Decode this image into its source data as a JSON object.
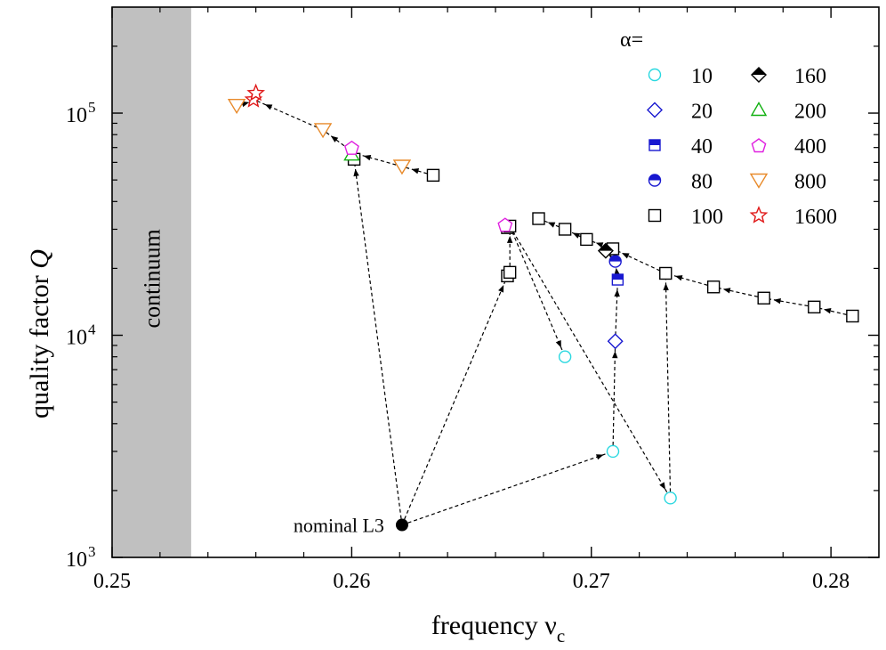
{
  "chart_data": {
    "type": "scatter",
    "xlabel": "frequency ν",
    "xlabel_sub": "c",
    "ylabel": "quality factor",
    "ylabel_italic": "Q",
    "xlim": [
      0.25,
      0.282
    ],
    "ylim": [
      1000,
      300000
    ],
    "y_scale": "log",
    "grid": false,
    "x_ticks": [
      0.25,
      0.26,
      0.27,
      0.28
    ],
    "x_tick_labels": [
      "0.25",
      "0.26",
      "0.27",
      "0.28"
    ],
    "y_ticks": [
      1000,
      10000,
      100000
    ],
    "y_tick_labels": [
      {
        "base": "10",
        "exp": "3"
      },
      {
        "base": "10",
        "exp": "4"
      },
      {
        "base": "10",
        "exp": "5"
      }
    ],
    "shaded_region": {
      "label": "continuum",
      "x_range": [
        0.25,
        0.2533
      ],
      "color": "#c0c0c0"
    },
    "legend": {
      "title": "α=",
      "placement": "top-right",
      "entries": [
        {
          "label": "10",
          "marker": "circle-open",
          "color": "#2ad8e0"
        },
        {
          "label": "20",
          "marker": "diamond-open",
          "color": "#1818d0"
        },
        {
          "label": "40",
          "marker": "square-half",
          "color": "#1818d0"
        },
        {
          "label": "80",
          "marker": "circle-half",
          "color": "#1818d0"
        },
        {
          "label": "100",
          "marker": "square-open",
          "color": "#000000"
        },
        {
          "label": "160",
          "marker": "diamond-half",
          "color": "#000000"
        },
        {
          "label": "200",
          "marker": "triangle-up-open",
          "color": "#10b010"
        },
        {
          "label": "400",
          "marker": "pentagon-open",
          "color": "#e020e0"
        },
        {
          "label": "800",
          "marker": "triangle-down-open",
          "color": "#e88a2a"
        },
        {
          "label": "1600",
          "marker": "star-open",
          "color": "#e01818"
        }
      ]
    },
    "annotation": {
      "text": "nominal L3",
      "point": [
        0.2621,
        1400
      ]
    },
    "series": [
      {
        "alpha": "10",
        "points": [
          [
            0.2689,
            8000
          ],
          [
            0.2709,
            3000
          ],
          [
            0.2733,
            1850
          ]
        ]
      },
      {
        "alpha": "20",
        "points": [
          [
            0.271,
            9400
          ]
        ]
      },
      {
        "alpha": "40",
        "points": [
          [
            0.2711,
            17800
          ]
        ]
      },
      {
        "alpha": "80",
        "points": [
          [
            0.271,
            21500
          ]
        ]
      },
      {
        "alpha": "100",
        "points": [
          [
            0.2601,
            62000
          ],
          [
            0.2634,
            52500
          ],
          [
            0.2665,
            18500
          ],
          [
            0.2666,
            19200
          ],
          [
            0.2665,
            30500
          ],
          [
            0.2666,
            31000
          ],
          [
            0.2678,
            33500
          ],
          [
            0.2689,
            30000
          ],
          [
            0.2698,
            27000
          ],
          [
            0.2709,
            24500
          ],
          [
            0.2731,
            19000
          ],
          [
            0.2751,
            16500
          ],
          [
            0.2772,
            14700
          ],
          [
            0.2793,
            13400
          ],
          [
            0.2809,
            12200
          ]
        ]
      },
      {
        "alpha": "160",
        "points": [
          [
            0.2706,
            24000
          ]
        ]
      },
      {
        "alpha": "200",
        "points": [
          [
            0.26,
            65000
          ]
        ]
      },
      {
        "alpha": "400",
        "points": [
          [
            0.26,
            70000
          ],
          [
            0.2664,
            31500
          ]
        ]
      },
      {
        "alpha": "800",
        "points": [
          [
            0.2552,
            108000
          ],
          [
            0.2588,
            84000
          ],
          [
            0.2621,
            57500
          ]
        ]
      },
      {
        "alpha": "1600",
        "points": [
          [
            0.2559,
            115000
          ],
          [
            0.256,
            123000
          ]
        ]
      }
    ],
    "nominal": {
      "point": [
        0.2621,
        1400
      ],
      "marker": "filled-circle"
    },
    "arrows": [
      {
        "from": [
          0.2621,
          1400
        ],
        "to": [
          0.2709,
          3000
        ]
      },
      {
        "from": [
          0.2621,
          1400
        ],
        "to": [
          0.2665,
          18500
        ]
      },
      {
        "from": [
          0.2621,
          1400
        ],
        "to": [
          0.2601,
          62000
        ]
      },
      {
        "from": [
          0.2601,
          62000
        ],
        "to": [
          0.2601,
          66000
        ]
      },
      {
        "from": [
          0.2666,
          19200
        ],
        "to": [
          0.2666,
          31000
        ]
      },
      {
        "from": [
          0.2666,
          31000
        ],
        "to": [
          0.2689,
          8000
        ]
      },
      {
        "from": [
          0.2666,
          31000
        ],
        "to": [
          0.2733,
          1850
        ]
      },
      {
        "from": [
          0.2709,
          3000
        ],
        "to": [
          0.271,
          9400
        ]
      },
      {
        "from": [
          0.271,
          9400
        ],
        "to": [
          0.2711,
          17800
        ]
      },
      {
        "from": [
          0.2711,
          17800
        ],
        "to": [
          0.271,
          21500
        ]
      },
      {
        "from": [
          0.271,
          21500
        ],
        "to": [
          0.2706,
          24000
        ]
      },
      {
        "from": [
          0.2733,
          1850
        ],
        "to": [
          0.2731,
          19000
        ]
      },
      {
        "from": [
          0.2809,
          12200
        ],
        "to": [
          0.2793,
          13400
        ]
      },
      {
        "from": [
          0.2793,
          13400
        ],
        "to": [
          0.2772,
          14700
        ]
      },
      {
        "from": [
          0.2772,
          14700
        ],
        "to": [
          0.2751,
          16500
        ]
      },
      {
        "from": [
          0.2751,
          16500
        ],
        "to": [
          0.2731,
          19000
        ]
      },
      {
        "from": [
          0.2731,
          19000
        ],
        "to": [
          0.2709,
          24500
        ]
      },
      {
        "from": [
          0.2709,
          24500
        ],
        "to": [
          0.2698,
          27000
        ]
      },
      {
        "from": [
          0.2698,
          27000
        ],
        "to": [
          0.2689,
          30000
        ]
      },
      {
        "from": [
          0.2689,
          30000
        ],
        "to": [
          0.2678,
          33500
        ]
      },
      {
        "from": [
          0.2634,
          52500
        ],
        "to": [
          0.2621,
          57500
        ]
      },
      {
        "from": [
          0.2621,
          57500
        ],
        "to": [
          0.2601,
          66000
        ]
      },
      {
        "from": [
          0.2601,
          66000
        ],
        "to": [
          0.2588,
          84000
        ]
      },
      {
        "from": [
          0.2588,
          84000
        ],
        "to": [
          0.256,
          114000
        ]
      },
      {
        "from": [
          0.2552,
          108000
        ],
        "to": [
          0.256,
          114000
        ]
      }
    ]
  }
}
